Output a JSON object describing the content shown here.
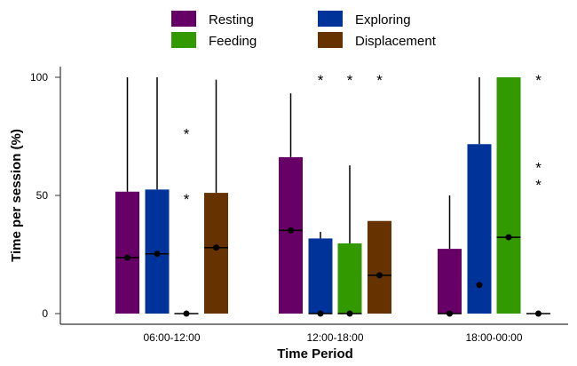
{
  "chart_data": {
    "type": "boxplot",
    "title": "",
    "xlabel": "Time Period",
    "ylabel": "Time per session (%)",
    "ylim": [
      0,
      100
    ],
    "yticks": [
      0,
      50,
      100
    ],
    "grid": false,
    "legend_placement": "top",
    "categories": [
      "06:00-12:00",
      "12:00-18:00",
      "18:00-00:00"
    ],
    "series": [
      {
        "name": "Resting",
        "color": "#660066",
        "boxes": [
          {
            "q1": 0,
            "median": 23.7,
            "q3": 51.6,
            "whisker_high": 100,
            "mean": 23.7,
            "outliers": []
          },
          {
            "q1": 0,
            "median": 35.2,
            "q3": 66.2,
            "whisker_high": 93.2,
            "mean": 35.2,
            "outliers": []
          },
          {
            "q1": 0,
            "median": 0,
            "q3": 27.4,
            "whisker_high": 50,
            "mean": 0,
            "outliers": []
          }
        ]
      },
      {
        "name": "Exploring",
        "color": "#003399",
        "boxes": [
          {
            "q1": 0,
            "median": 25.3,
            "q3": 52.5,
            "whisker_high": 100,
            "mean": 25.3,
            "outliers": []
          },
          {
            "q1": 0,
            "median": 0,
            "q3": 31.8,
            "whisker_high": 34.6,
            "mean": 0,
            "outliers": [
              100
            ]
          },
          {
            "q1": 0,
            "median": null,
            "q3": 71.7,
            "whisker_high": 100,
            "mean": 12.1,
            "outliers": []
          }
        ]
      },
      {
        "name": "Feeding",
        "color": "#339900",
        "boxes": [
          {
            "q1": 0,
            "median": 0,
            "q3": 0,
            "whisker_high": 0,
            "mean": 0,
            "outliers": [
              77.3,
              49.6
            ]
          },
          {
            "q1": 0,
            "median": 0,
            "q3": 29.7,
            "whisker_high": 62.7,
            "mean": 0,
            "outliers": [
              100
            ]
          },
          {
            "q1": 0,
            "median": 32.3,
            "q3": 100,
            "whisker_high": 100,
            "mean": 32.3,
            "outliers": []
          }
        ]
      },
      {
        "name": "Displacement",
        "color": "#663300",
        "boxes": [
          {
            "q1": 0,
            "median": 27.9,
            "q3": 51.1,
            "whisker_high": 99,
            "mean": 27.9,
            "outliers": []
          },
          {
            "q1": 0,
            "median": 16.2,
            "q3": 39.2,
            "whisker_high": 39.2,
            "mean": 16.2,
            "outliers": [
              100
            ]
          },
          {
            "q1": 0,
            "median": 0,
            "q3": 0,
            "whisker_high": 0,
            "mean": 0,
            "outliers": [
              100,
              62.9,
              55.6
            ]
          }
        ]
      }
    ]
  }
}
